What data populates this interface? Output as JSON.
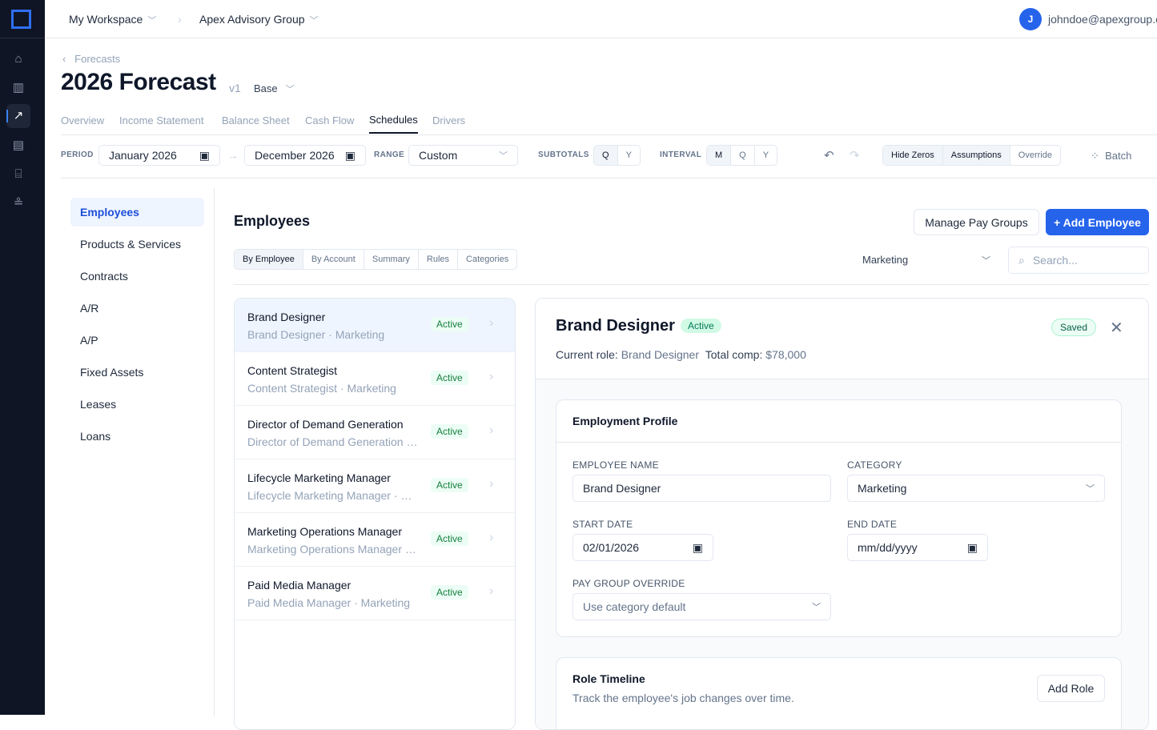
{
  "nav": {
    "icons": [
      "home-icon",
      "bar-chart-icon",
      "trending-icon",
      "document-icon",
      "bank-icon",
      "hierarchy-icon"
    ]
  },
  "top": {
    "workspace": "My Workspace",
    "org": "Apex Advisory Group",
    "avatar": "J",
    "user": "johndoe@apexgroup.com"
  },
  "header": {
    "back": "Forecasts",
    "title": "2026 Forecast",
    "version": "v1",
    "scenario": "Base"
  },
  "tabs": [
    "Overview",
    "Income Statement",
    "Balance Sheet",
    "Cash Flow",
    "Schedules",
    "Drivers"
  ],
  "toolbar": {
    "period_label": "PERIOD",
    "start": "January 2026",
    "end": "December 2026",
    "range_label": "RANGE",
    "range": "Custom",
    "subtotals_label": "SUBTOTALS",
    "subtotals": [
      "Q",
      "Y"
    ],
    "interval_label": "INTERVAL",
    "interval": [
      "M",
      "Q",
      "Y"
    ],
    "toggles": [
      "Hide Zeros",
      "Assumptions",
      "Override"
    ],
    "batch": "Batch"
  },
  "sidebar": [
    "Employees",
    "Products & Services",
    "Contracts",
    "A/R",
    "A/P",
    "Fixed Assets",
    "Leases",
    "Loans"
  ],
  "main": {
    "title": "Employees",
    "manage": "Manage Pay Groups",
    "add": "+ Add Employee",
    "views": [
      "By Employee",
      "By Account",
      "Summary",
      "Rules",
      "Categories"
    ],
    "filter": "Marketing",
    "search_placeholder": "Search..."
  },
  "employees": [
    {
      "title": "Brand Designer",
      "sub": "Brand Designer · Marketing",
      "status": "Active"
    },
    {
      "title": "Content Strategist",
      "sub": "Content Strategist · Marketing",
      "status": "Active"
    },
    {
      "title": "Director of Demand Generation",
      "sub": "Director of Demand Generation · Marketing",
      "status": "Active"
    },
    {
      "title": "Lifecycle Marketing Manager",
      "sub": "Lifecycle Marketing Manager · Marketing",
      "status": "Active"
    },
    {
      "title": "Marketing Operations Manager",
      "sub": "Marketing Operations Manager · Marketing",
      "status": "Active"
    },
    {
      "title": "Paid Media Manager",
      "sub": "Paid Media Manager · Marketing",
      "status": "Active"
    }
  ],
  "detail": {
    "name": "Brand Designer",
    "status": "Active",
    "saved": "Saved",
    "role_label": "Current role:",
    "role": "Brand Designer",
    "comp_label": "Total comp:",
    "comp": "$78,000",
    "profile": {
      "title": "Employment Profile",
      "name_label": "EMPLOYEE NAME",
      "name": "Brand Designer",
      "category_label": "CATEGORY",
      "category": "Marketing",
      "start_label": "START DATE",
      "start": "02/01/2026",
      "end_label": "END DATE",
      "end": "mm/dd/yyyy",
      "paygroup_label": "PAY GROUP OVERRIDE",
      "paygroup": "Use category default"
    },
    "timeline": {
      "title": "Role Timeline",
      "desc": "Track the employee's job changes over time.",
      "add": "Add Role"
    }
  }
}
